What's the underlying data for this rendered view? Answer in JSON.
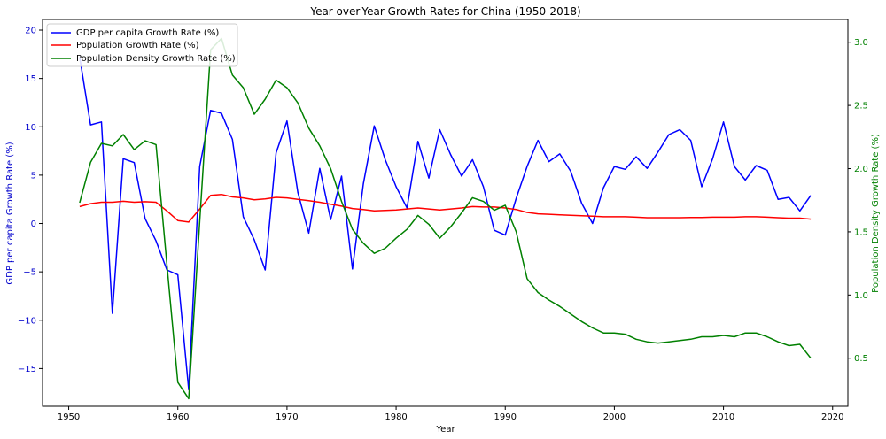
{
  "chart_data": {
    "type": "line",
    "title": "Year-over-Year Growth Rates for China (1950-2018)",
    "xlabel": "Year",
    "ylabel_left": "GDP per capita Growth Rate (%)",
    "ylabel_right": "Population Density Growth Rate (%)",
    "xlim": [
      1947.6,
      2021.4
    ],
    "ylim_left": [
      -18.9,
      21.1
    ],
    "ylim_right": [
      0.12,
      3.18
    ],
    "xticks": [
      1950,
      1960,
      1970,
      1980,
      1990,
      2000,
      2010,
      2020
    ],
    "yticks_left": [
      -15,
      -10,
      -5,
      0,
      5,
      10,
      15,
      20
    ],
    "yticks_right": [
      0.5,
      1.0,
      1.5,
      2.0,
      2.5,
      3.0
    ],
    "left_axis_color": "#0000cc",
    "right_axis_color": "#008000",
    "legend_position": "top-left",
    "x": [
      1951,
      1952,
      1953,
      1954,
      1955,
      1956,
      1957,
      1958,
      1959,
      1960,
      1961,
      1962,
      1963,
      1964,
      1965,
      1966,
      1967,
      1968,
      1969,
      1970,
      1971,
      1972,
      1973,
      1974,
      1975,
      1976,
      1977,
      1978,
      1979,
      1980,
      1981,
      1982,
      1983,
      1984,
      1985,
      1986,
      1987,
      1988,
      1989,
      1990,
      1991,
      1992,
      1993,
      1994,
      1995,
      1996,
      1997,
      1998,
      1999,
      2000,
      2001,
      2002,
      2003,
      2004,
      2005,
      2006,
      2007,
      2008,
      2009,
      2010,
      2011,
      2012,
      2013,
      2014,
      2015,
      2016,
      2017,
      2018
    ],
    "series": [
      {
        "name": "GDP per capita Growth Rate (%)",
        "axis": "left",
        "color": "#0000ff",
        "values": [
          17.2,
          10.2,
          10.5,
          -9.3,
          6.7,
          6.3,
          0.5,
          -1.8,
          -4.8,
          -5.3,
          -17.2,
          5.9,
          11.7,
          11.4,
          8.7,
          0.7,
          -1.7,
          -4.8,
          7.3,
          10.6,
          3.2,
          -1.0,
          5.7,
          0.4,
          4.9,
          -4.7,
          4.1,
          10.1,
          6.6,
          3.8,
          1.6,
          8.5,
          4.7,
          9.7,
          7.1,
          4.9,
          6.6,
          3.8,
          -0.7,
          -1.2,
          2.6,
          5.9,
          8.6,
          6.4,
          7.2,
          5.4,
          2.1,
          0.0,
          3.7,
          5.9,
          5.6,
          6.9,
          5.7,
          7.4,
          9.2,
          9.7,
          8.6,
          3.8,
          6.7,
          10.5,
          5.9,
          4.5,
          6.0,
          5.5,
          2.5,
          2.7,
          1.3,
          2.9
        ]
      },
      {
        "name": "Population Growth Rate (%)",
        "axis": "left",
        "color": "#ff0000",
        "values": [
          1.75,
          2.05,
          2.2,
          2.2,
          2.3,
          2.2,
          2.25,
          2.2,
          1.3,
          0.3,
          0.15,
          1.5,
          2.9,
          3.0,
          2.75,
          2.65,
          2.45,
          2.55,
          2.7,
          2.65,
          2.5,
          2.35,
          2.2,
          2.0,
          1.8,
          1.55,
          1.45,
          1.3,
          1.35,
          1.4,
          1.5,
          1.6,
          1.5,
          1.4,
          1.5,
          1.6,
          1.75,
          1.7,
          1.7,
          1.6,
          1.45,
          1.15,
          1.0,
          0.95,
          0.9,
          0.85,
          0.8,
          0.75,
          0.7,
          0.7,
          0.7,
          0.65,
          0.6,
          0.6,
          0.6,
          0.6,
          0.62,
          0.62,
          0.65,
          0.65,
          0.65,
          0.7,
          0.7,
          0.65,
          0.6,
          0.55,
          0.55,
          0.45
        ]
      },
      {
        "name": "Population Density Growth Rate (%)",
        "axis": "right",
        "color": "#008000",
        "values": [
          1.73,
          2.05,
          2.2,
          2.18,
          2.27,
          2.15,
          2.22,
          2.19,
          1.24,
          0.31,
          0.18,
          1.58,
          2.94,
          3.03,
          2.74,
          2.64,
          2.43,
          2.55,
          2.7,
          2.64,
          2.52,
          2.32,
          2.18,
          2.0,
          1.74,
          1.52,
          1.41,
          1.33,
          1.37,
          1.45,
          1.52,
          1.63,
          1.56,
          1.45,
          1.54,
          1.65,
          1.77,
          1.74,
          1.67,
          1.71,
          1.5,
          1.13,
          1.02,
          0.96,
          0.91,
          0.85,
          0.79,
          0.74,
          0.7,
          0.7,
          0.69,
          0.65,
          0.63,
          0.62,
          0.63,
          0.64,
          0.65,
          0.67,
          0.67,
          0.68,
          0.67,
          0.7,
          0.7,
          0.67,
          0.63,
          0.6,
          0.61,
          0.5
        ]
      }
    ]
  }
}
